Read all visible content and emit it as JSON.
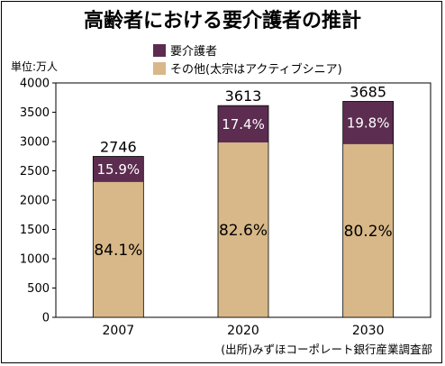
{
  "chart_data": {
    "type": "bar",
    "stacked": true,
    "title": "高齢者における要介護者の推計",
    "unit_label": "単位:万人",
    "source": "(出所)みずほコーポレート銀行産業調査部",
    "categories": [
      "2007",
      "2020",
      "2030"
    ],
    "totals": [
      2746,
      3613,
      3685
    ],
    "total_labels": [
      "2746",
      "3613",
      "3685"
    ],
    "ylim": [
      0,
      4000
    ],
    "yticks": [
      "0",
      "500",
      "1000",
      "1500",
      "2000",
      "2500",
      "3000",
      "3500",
      "4000"
    ],
    "grid": false,
    "legend_position": "top",
    "series": [
      {
        "name": "その他(太宗はアクティブシニア)",
        "color": "#d8b888",
        "percent_labels": [
          "84.1%",
          "82.6%",
          "80.2%"
        ],
        "values": [
          2309,
          2984,
          2955
        ]
      },
      {
        "name": "要介護者",
        "color": "#5c2d50",
        "percent_labels": [
          "15.9%",
          "17.4%",
          "19.8%"
        ],
        "values": [
          437,
          629,
          730
        ]
      }
    ]
  }
}
